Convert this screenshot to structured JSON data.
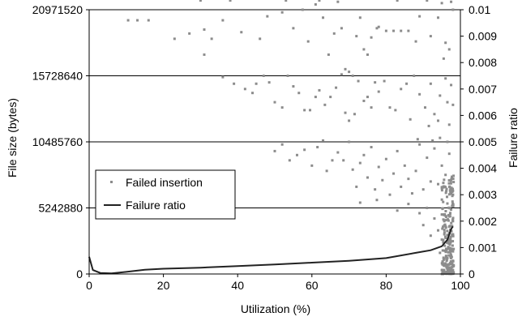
{
  "chart_data": {
    "type": "scatter",
    "xlabel": "Utilization (%)",
    "ylabel": "File size (bytes)",
    "y2label": "Failure ratio",
    "xlim": [
      0,
      100
    ],
    "ylim": [
      0,
      20971520
    ],
    "y2lim": [
      0,
      0.01
    ],
    "x_ticks": [
      0,
      20,
      40,
      60,
      80,
      100
    ],
    "x_tick_labels": [
      "0",
      "20",
      "40",
      "60",
      "80",
      "100"
    ],
    "y_ticks": [
      0,
      5242880,
      10485760,
      15728640,
      20971520
    ],
    "y_tick_labels": [
      "0",
      "5242880",
      "10485760",
      "15728640",
      "20971520"
    ],
    "y2_ticks": [
      0,
      0.001,
      0.002,
      0.003,
      0.004,
      0.005,
      0.006,
      0.007,
      0.008,
      0.009,
      0.01
    ],
    "y2_tick_labels": [
      "0",
      "0.001",
      "0.002",
      "0.003",
      "0.004",
      "0.005",
      "0.006",
      "0.007",
      "0.008",
      "0.009",
      "0.01"
    ],
    "grid": "horizontal",
    "legend_position": "middle-left",
    "legend": [
      "Failed insertion",
      "Failure ratio"
    ],
    "colors": {
      "scatter": "#8c8c8c",
      "line": "#222222",
      "grid": "#000000"
    },
    "series": [
      {
        "name": "Failed insertion",
        "type": "scatter",
        "axis": "y",
        "points": [
          [
            10.5,
            19.2
          ],
          [
            13.0,
            19.2
          ],
          [
            16.0,
            19.2
          ],
          [
            30.0,
            20.7
          ],
          [
            38.0,
            20.7
          ],
          [
            53.0,
            20.7
          ],
          [
            62.0,
            20.7
          ],
          [
            67.0,
            20.6
          ],
          [
            83.0,
            20.7
          ],
          [
            91.0,
            20.7
          ],
          [
            95.0,
            20.5
          ],
          [
            97.5,
            20.6
          ],
          [
            23.0,
            17.8
          ],
          [
            27.0,
            18.2
          ],
          [
            31.0,
            18.5
          ],
          [
            31.0,
            16.6
          ],
          [
            33.0,
            17.8
          ],
          [
            36.0,
            19.2
          ],
          [
            41.0,
            18.3
          ],
          [
            46.0,
            17.8
          ],
          [
            48.0,
            19.5
          ],
          [
            52.0,
            19.8
          ],
          [
            55.0,
            18.6
          ],
          [
            57.5,
            20.0
          ],
          [
            59.0,
            17.6
          ],
          [
            61.0,
            20.4
          ],
          [
            63.0,
            19.4
          ],
          [
            64.5,
            16.6
          ],
          [
            66.0,
            18.2
          ],
          [
            68.0,
            18.6
          ],
          [
            69.0,
            15.5
          ],
          [
            70.0,
            15.3
          ],
          [
            71.0,
            15.0
          ],
          [
            72.0,
            18.0
          ],
          [
            73.0,
            19.4
          ],
          [
            74.0,
            17.0
          ],
          [
            75.0,
            16.6
          ],
          [
            76.0,
            17.9
          ],
          [
            77.5,
            18.6
          ],
          [
            78.0,
            18.7
          ],
          [
            80.0,
            18.4
          ],
          [
            82.0,
            18.4
          ],
          [
            84.0,
            18.4
          ],
          [
            86.0,
            18.4
          ],
          [
            88.0,
            17.6
          ],
          [
            89.0,
            19.5
          ],
          [
            92.0,
            18.0
          ],
          [
            94.0,
            19.4
          ],
          [
            96.0,
            17.5
          ],
          [
            98.0,
            20.0
          ],
          [
            97.0,
            17.0
          ],
          [
            95.5,
            16.3
          ],
          [
            36.0,
            14.9
          ],
          [
            39.0,
            14.4
          ],
          [
            42.0,
            14.0
          ],
          [
            44.0,
            13.7
          ],
          [
            45.0,
            14.4
          ],
          [
            47.0,
            15.0
          ],
          [
            48.5,
            14.5
          ],
          [
            50.0,
            13.0
          ],
          [
            52.0,
            12.6
          ],
          [
            53.5,
            15.0
          ],
          [
            55.0,
            14.2
          ],
          [
            56.5,
            13.7
          ],
          [
            58.0,
            12.4
          ],
          [
            59.5,
            12.4
          ],
          [
            61.0,
            13.4
          ],
          [
            62.0,
            13.9
          ],
          [
            63.5,
            12.8
          ],
          [
            65.0,
            13.4
          ],
          [
            66.5,
            14.1
          ],
          [
            68.0,
            15.1
          ],
          [
            69.0,
            12.2
          ],
          [
            70.0,
            11.6
          ],
          [
            71.5,
            12.1
          ],
          [
            72.5,
            14.6
          ],
          [
            74.0,
            13.1
          ],
          [
            75.0,
            13.4
          ],
          [
            76.0,
            12.6
          ],
          [
            77.0,
            14.5
          ],
          [
            78.0,
            13.8
          ],
          [
            79.5,
            14.6
          ],
          [
            81.0,
            12.6
          ],
          [
            82.5,
            12.4
          ],
          [
            84.0,
            14.0
          ],
          [
            85.5,
            14.4
          ],
          [
            86.5,
            11.7
          ],
          [
            87.5,
            15.0
          ],
          [
            89.0,
            13.6
          ],
          [
            90.5,
            12.6
          ],
          [
            92.0,
            14.4
          ],
          [
            93.0,
            12.1
          ],
          [
            94.5,
            13.5
          ],
          [
            96.0,
            14.8
          ],
          [
            97.0,
            11.3
          ],
          [
            98.0,
            12.8
          ],
          [
            96.5,
            13.0
          ],
          [
            97.5,
            14.3
          ],
          [
            94.0,
            11.6
          ],
          [
            91.5,
            11.2
          ],
          [
            50.0,
            9.3
          ],
          [
            52.0,
            9.8
          ],
          [
            54.0,
            8.6
          ],
          [
            56.0,
            9.0
          ],
          [
            58.0,
            9.4
          ],
          [
            60.0,
            8.2
          ],
          [
            61.5,
            9.6
          ],
          [
            63.0,
            10.1
          ],
          [
            64.0,
            7.8
          ],
          [
            65.5,
            8.6
          ],
          [
            67.0,
            9.2
          ],
          [
            68.5,
            8.6
          ],
          [
            70.0,
            10.0
          ],
          [
            71.0,
            7.9
          ],
          [
            72.0,
            6.6
          ],
          [
            73.0,
            8.4
          ],
          [
            74.0,
            9.0
          ],
          [
            75.0,
            7.3
          ],
          [
            76.0,
            9.6
          ],
          [
            77.0,
            6.4
          ],
          [
            78.0,
            8.1
          ],
          [
            79.0,
            7.1
          ],
          [
            80.0,
            8.7
          ],
          [
            81.0,
            6.0
          ],
          [
            82.0,
            7.6
          ],
          [
            83.0,
            9.3
          ],
          [
            84.0,
            6.6
          ],
          [
            85.0,
            8.2
          ],
          [
            86.0,
            7.2
          ],
          [
            87.0,
            6.1
          ],
          [
            88.0,
            7.8
          ],
          [
            89.0,
            9.8
          ],
          [
            90.0,
            6.4
          ],
          [
            91.0,
            8.8
          ],
          [
            92.0,
            7.0
          ],
          [
            93.0,
            9.5
          ],
          [
            94.0,
            6.8
          ],
          [
            95.0,
            8.2
          ],
          [
            96.0,
            7.5
          ],
          [
            97.0,
            9.1
          ],
          [
            98.0,
            6.3
          ],
          [
            96.5,
            10.0
          ],
          [
            94.5,
            10.3
          ],
          [
            92.5,
            10.1
          ],
          [
            88.5,
            10.2
          ],
          [
            73.0,
            5.4
          ],
          [
            77.5,
            5.6
          ],
          [
            83.0,
            4.8
          ],
          [
            86.0,
            5.3
          ],
          [
            89.0,
            4.6
          ],
          [
            91.0,
            5.0
          ],
          [
            93.0,
            4.2
          ],
          [
            95.0,
            4.5
          ],
          [
            97.0,
            5.0
          ],
          [
            98.0,
            4.0
          ],
          [
            96.0,
            3.6
          ],
          [
            94.0,
            3.3
          ],
          [
            92.0,
            2.9
          ],
          [
            90.0,
            3.7
          ],
          [
            95.0,
            2.6
          ],
          [
            97.0,
            2.3
          ],
          [
            98.0,
            3.0
          ],
          [
            96.5,
            1.9
          ],
          [
            94.5,
            1.6
          ],
          [
            97.5,
            1.4
          ],
          [
            98.0,
            1.0
          ],
          [
            96.0,
            0.8
          ],
          [
            97.0,
            0.5
          ],
          [
            98.0,
            0.3
          ],
          [
            95.5,
            0.2
          ],
          [
            97.5,
            0.1
          ],
          [
            96.5,
            1.2
          ]
        ]
      },
      {
        "name": "Failure ratio",
        "type": "line",
        "axis": "y2",
        "points": [
          [
            0,
            0.00065
          ],
          [
            1,
            0.00015
          ],
          [
            3,
            4e-05
          ],
          [
            6,
            2e-05
          ],
          [
            10,
            8e-05
          ],
          [
            15,
            0.00016
          ],
          [
            20,
            0.0002
          ],
          [
            30,
            0.00024
          ],
          [
            40,
            0.0003
          ],
          [
            50,
            0.00036
          ],
          [
            60,
            0.00043
          ],
          [
            70,
            0.0005
          ],
          [
            80,
            0.0006
          ],
          [
            88,
            0.0008
          ],
          [
            92,
            0.0009
          ],
          [
            95,
            0.00105
          ],
          [
            96.5,
            0.0013
          ],
          [
            97.5,
            0.0017
          ],
          [
            98,
            0.0018
          ]
        ]
      }
    ]
  }
}
